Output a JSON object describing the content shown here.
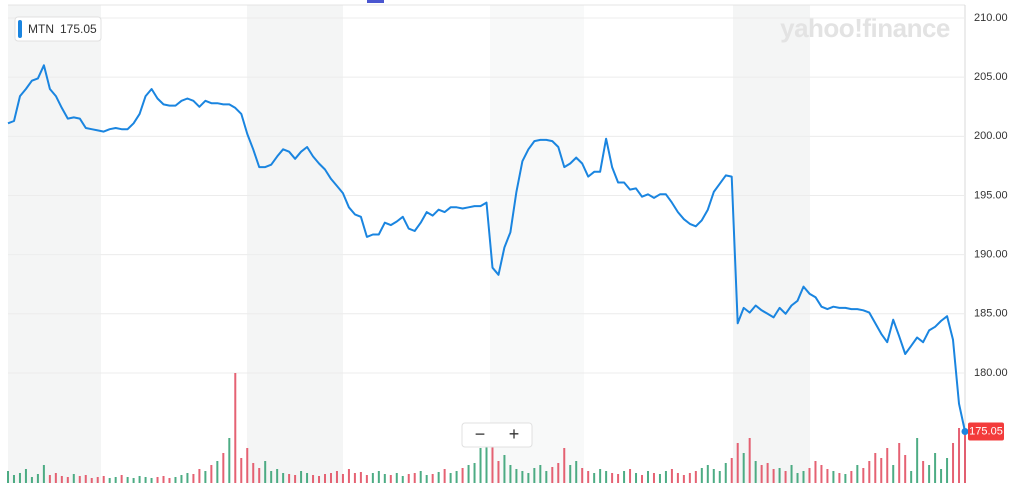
{
  "chart_data": {
    "type": "line",
    "watermark": "yahoo!finance",
    "last_price": 175.05,
    "series": [
      {
        "name": "MTN",
        "color": "#1a85e0",
        "values": [
          201.1,
          201.3,
          203.4,
          204.0,
          204.7,
          204.9,
          206.0,
          204.0,
          203.4,
          202.4,
          201.5,
          201.6,
          201.5,
          200.7,
          200.6,
          200.5,
          200.4,
          200.6,
          200.7,
          200.6,
          200.6,
          201.1,
          201.9,
          203.4,
          204.0,
          203.2,
          202.7,
          202.6,
          202.6,
          203.0,
          203.2,
          203.0,
          202.5,
          203.0,
          202.8,
          202.8,
          202.7,
          202.7,
          202.4,
          201.9,
          200.2,
          198.9,
          197.4,
          197.4,
          197.6,
          198.3,
          198.9,
          198.7,
          198.1,
          198.7,
          199.1,
          198.3,
          197.7,
          197.2,
          196.4,
          195.8,
          195.2,
          194.0,
          193.4,
          193.2,
          191.5,
          191.7,
          191.7,
          192.7,
          192.5,
          192.8,
          193.2,
          192.2,
          192.0,
          192.7,
          193.6,
          193.3,
          193.8,
          193.6,
          194.0,
          194.0,
          193.9,
          194.0,
          194.1,
          194.1,
          194.4,
          188.9,
          188.3,
          190.6,
          191.9,
          195.3,
          197.9,
          198.9,
          199.6,
          199.7,
          199.7,
          199.6,
          199.1,
          197.4,
          197.7,
          198.2,
          197.7,
          196.6,
          197.0,
          197.0,
          199.8,
          197.4,
          196.1,
          196.1,
          195.5,
          195.6,
          194.9,
          195.1,
          194.8,
          195.1,
          195.1,
          194.4,
          193.6,
          193.0,
          192.6,
          192.4,
          192.9,
          193.8,
          195.3,
          196.0,
          196.7,
          196.6,
          184.2,
          185.5,
          185.1,
          185.7,
          185.3,
          185.0,
          184.7,
          185.5,
          185.0,
          185.7,
          186.1,
          187.3,
          186.7,
          186.4,
          185.6,
          185.4,
          185.6,
          185.5,
          185.5,
          185.4,
          185.4,
          185.3,
          185.1,
          184.2,
          183.3,
          182.6,
          184.5,
          183.1,
          181.6,
          182.3,
          183.0,
          182.6,
          183.6,
          183.9,
          184.4,
          184.8,
          182.8,
          177.4,
          175.05
        ]
      }
    ],
    "volume": {
      "up_color": "#2e9e6e",
      "down_color": "#e0475a",
      "values": [
        12,
        8,
        10,
        14,
        6,
        9,
        18,
        8,
        10,
        7,
        6,
        9,
        7,
        8,
        5,
        6,
        7,
        5,
        6,
        8,
        6,
        5,
        7,
        6,
        5,
        6,
        7,
        5,
        6,
        8,
        10,
        9,
        14,
        12,
        18,
        22,
        30,
        45,
        110,
        25,
        35,
        20,
        15,
        22,
        12,
        14,
        10,
        9,
        8,
        12,
        10,
        8,
        7,
        9,
        10,
        12,
        9,
        14,
        10,
        11,
        8,
        10,
        12,
        9,
        8,
        10,
        7,
        9,
        10,
        12,
        8,
        9,
        11,
        14,
        10,
        12,
        15,
        18,
        20,
        35,
        40,
        50,
        22,
        28,
        18,
        14,
        12,
        10,
        15,
        18,
        12,
        16,
        20,
        35,
        18,
        22,
        15,
        12,
        10,
        14,
        12,
        10,
        9,
        12,
        14,
        10,
        8,
        12,
        10,
        9,
        12,
        14,
        10,
        8,
        10,
        12,
        15,
        18,
        14,
        12,
        20,
        25,
        40,
        30,
        45,
        22,
        18,
        20,
        14,
        15,
        12,
        18,
        10,
        12,
        15,
        22,
        18,
        14,
        12,
        10,
        9,
        12,
        18,
        15,
        22,
        30,
        25,
        35,
        18,
        40,
        28,
        12,
        45,
        22,
        18,
        30,
        14,
        25,
        40,
        55,
        50
      ]
    },
    "ylim": [
      170.7,
      211.1
    ],
    "yticks": [
      {
        "value": 180,
        "label": "180.00"
      },
      {
        "value": 185,
        "label": "185.00"
      },
      {
        "value": 190,
        "label": "190.00"
      },
      {
        "value": 195,
        "label": "195.00"
      },
      {
        "value": 200,
        "label": "200.00"
      },
      {
        "value": 205,
        "label": "205.00"
      },
      {
        "value": 210,
        "label": "210.00"
      }
    ],
    "grid": true,
    "controls": [
      "−",
      "+"
    ]
  }
}
